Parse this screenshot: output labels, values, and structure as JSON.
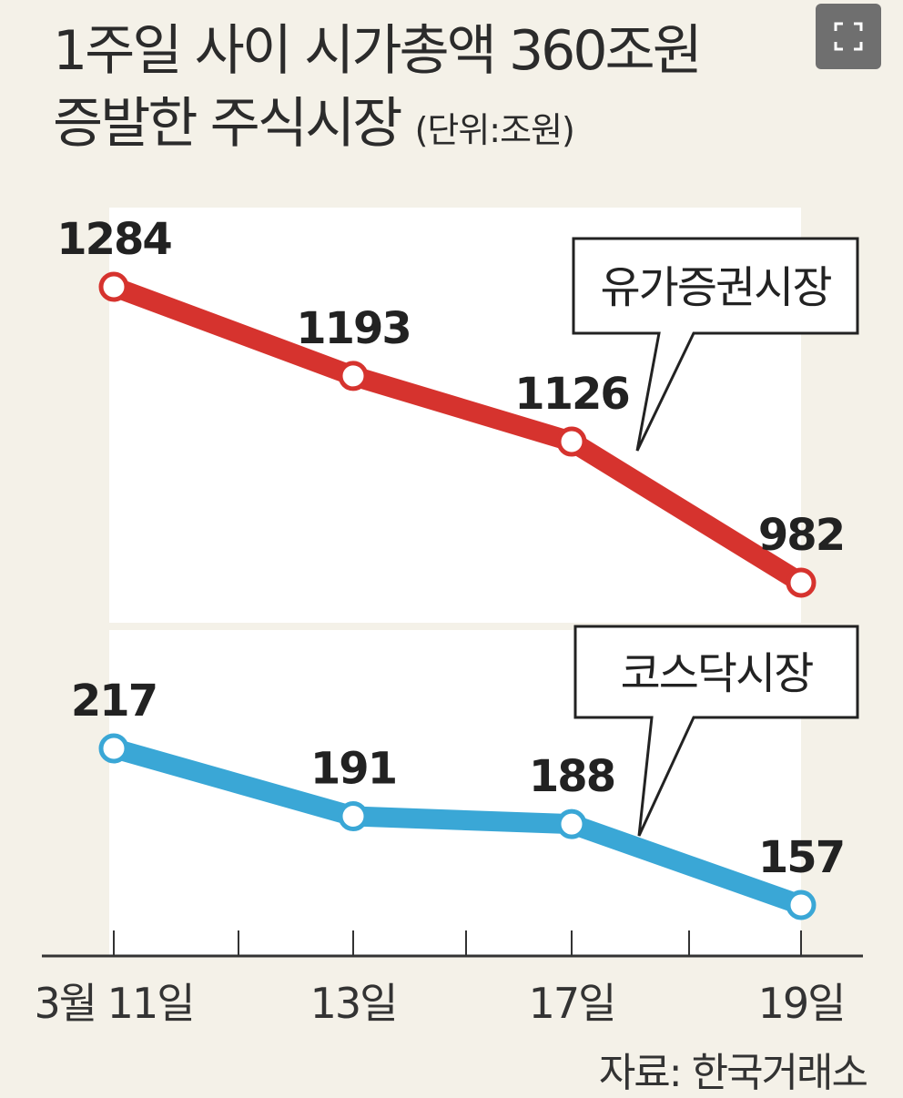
{
  "title": {
    "line1": "1주일 사이 시가총액 360조원",
    "line2": "증발한 주식시장",
    "unit": "(단위:조원)"
  },
  "expand_icon": "fullscreen-expand-icon",
  "source": "자료: 한국거래소",
  "chart_data": {
    "type": "line",
    "title": "1주일 사이 시가총액 360조원 증발한 주식시장",
    "unit": "(단위:조원)",
    "categories": [
      "3월 11일",
      "13일",
      "17일",
      "19일"
    ],
    "series": [
      {
        "name": "유가증권시장",
        "color": "#d6332e",
        "values": [
          1284,
          1193,
          1126,
          982
        ]
      },
      {
        "name": "코스닥시장",
        "color": "#3aa7d6",
        "values": [
          217,
          191,
          188,
          157
        ]
      }
    ]
  }
}
